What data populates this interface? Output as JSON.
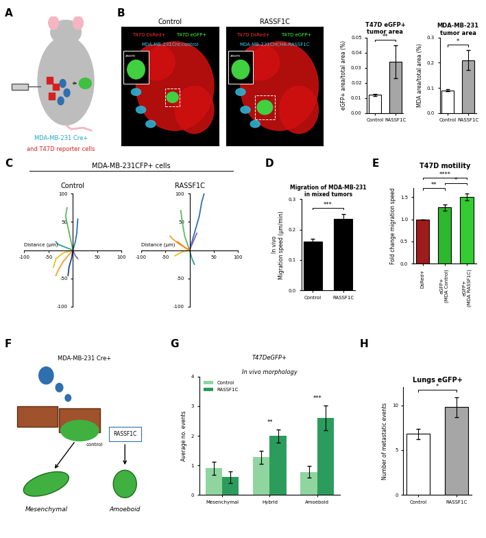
{
  "panel_labels": [
    "A",
    "B",
    "C",
    "D",
    "E",
    "F",
    "G",
    "H"
  ],
  "panel_a": {
    "texts": [
      "MDA-MB-231 Cre+",
      "and T47D reporter cells"
    ]
  },
  "panel_b_images": [
    {
      "title": "Control",
      "overlay": [
        "T47D DsRed+",
        "T47D eGFP+"
      ],
      "cell_label": "MDA-MB-231Cre;control",
      "inset": "zoom"
    },
    {
      "title": "RASSF1C",
      "overlay": [
        "T47D DsRed+",
        "T47D eGFP+"
      ],
      "cell_label": "MDA-MB-231Cre;HA-RASSF1C",
      "inset": "zoom"
    }
  ],
  "panel_c_header": "MDA-MB-231CFP+ cells",
  "panel_f": {
    "source": "MDA-MB-231 Cre+",
    "branches": [
      "control",
      "RASSF1C"
    ],
    "outcomes": [
      "Mesenchymal",
      "Amoeboid"
    ]
  },
  "chart_data": [
    {
      "type": "bar",
      "title": "T47D eGFP+\ntumor area",
      "ylabel": "eGFP+ area/total area (%)",
      "categories": [
        "Control",
        "RASSF1C"
      ],
      "values": [
        0.012,
        0.034
      ],
      "errors": [
        0.0008,
        0.011
      ],
      "colors": [
        "#ffffff",
        "#a6a6a6"
      ],
      "ylim": [
        0,
        0.05
      ],
      "yticks": [
        {
          "value": 0,
          "label": "0.00"
        },
        {
          "value": 0.01,
          "label": "0.01"
        },
        {
          "value": 0.02,
          "label": "0.02"
        },
        {
          "value": 0.03,
          "label": "0.03"
        },
        {
          "value": 0.04,
          "label": "0.04"
        },
        {
          "value": 0.05,
          "label": "0.05"
        }
      ],
      "significance": [
        {
          "pair": [
            0,
            1
          ],
          "label": "**"
        }
      ]
    },
    {
      "type": "bar",
      "title": "MDA-MB-231\ntumor area",
      "ylabel": "MDA area/total area (%)",
      "categories": [
        "Control",
        "RASSF1C"
      ],
      "values": [
        0.09,
        0.21
      ],
      "errors": [
        0.004,
        0.04
      ],
      "colors": [
        "#ffffff",
        "#a6a6a6"
      ],
      "ylim": [
        0,
        0.3
      ],
      "yticks": [
        {
          "value": 0,
          "label": "0.0"
        },
        0.1,
        0.2,
        0.3
      ],
      "significance": [
        {
          "pair": [
            0,
            1
          ],
          "label": "*"
        }
      ]
    },
    {
      "type": "line",
      "title": "Control",
      "xlabel": "Distance (µm)",
      "xlim": [
        -100,
        100
      ],
      "ylim": [
        -100,
        100
      ],
      "xticks": [
        -100,
        -50,
        50,
        100
      ],
      "yticks": [
        -100,
        -50,
        50,
        100
      ],
      "series": [
        {
          "color": "#5cb85c",
          "x": [
            0,
            -5,
            -10,
            -15,
            -12
          ],
          "y": [
            0,
            20,
            40,
            60,
            75
          ]
        },
        {
          "color": "#2e6fb0",
          "x": [
            0,
            5,
            8,
            10
          ],
          "y": [
            0,
            15,
            30,
            55
          ]
        },
        {
          "color": "#f0a030",
          "x": [
            0,
            -10,
            -20,
            -30,
            -35
          ],
          "y": [
            0,
            -10,
            -20,
            -35,
            -45
          ]
        },
        {
          "color": "#1f3f8f",
          "x": [
            0,
            -3,
            -8,
            -10
          ],
          "y": [
            0,
            -15,
            -30,
            -45
          ]
        },
        {
          "color": "#2a9d8f",
          "x": [
            0,
            -15,
            -30,
            -35
          ],
          "y": [
            0,
            5,
            10,
            15
          ]
        },
        {
          "color": "#e8c020",
          "x": [
            0,
            -20,
            -35,
            -40
          ],
          "y": [
            0,
            -5,
            -15,
            -30
          ]
        },
        {
          "color": "#8a5cc0",
          "x": [
            0,
            5,
            10
          ],
          "y": [
            0,
            -10,
            -15
          ]
        }
      ]
    },
    {
      "type": "line",
      "title": "RASSF1C",
      "xlabel": "Distance (µm)",
      "xlim": [
        -100,
        100
      ],
      "ylim": [
        -100,
        100
      ],
      "xticks": [
        -100,
        -50,
        50,
        100
      ],
      "yticks": [
        -100,
        -50,
        50,
        100
      ],
      "series": [
        {
          "color": "#2e6fb0",
          "x": [
            0,
            10,
            20,
            25,
            30
          ],
          "y": [
            0,
            30,
            60,
            85,
            100
          ]
        },
        {
          "color": "#5cb85c",
          "x": [
            0,
            -10,
            -15,
            -18
          ],
          "y": [
            0,
            25,
            50,
            70
          ]
        },
        {
          "color": "#f0a030",
          "x": [
            0,
            -20,
            -35,
            -40
          ],
          "y": [
            0,
            10,
            20,
            25
          ]
        },
        {
          "color": "#2a9d8f",
          "x": [
            0,
            5,
            10
          ],
          "y": [
            0,
            -15,
            -25
          ]
        },
        {
          "color": "#e8c020",
          "x": [
            0,
            -15,
            -30
          ],
          "y": [
            0,
            -3,
            -10
          ]
        },
        {
          "color": "#8a5cc0",
          "x": [
            0,
            10,
            15
          ],
          "y": [
            0,
            20,
            30
          ]
        },
        {
          "color": "#ff7f0e",
          "x": [
            0,
            -10,
            -25
          ],
          "y": [
            0,
            5,
            15
          ]
        }
      ]
    },
    {
      "type": "bar",
      "title": "Migration of MDA-MB-231\nin mixed tumors",
      "ylabel": "In vivo\nMigration speed (µm/min)",
      "categories": [
        "Control",
        "RASSF1C"
      ],
      "values": [
        0.16,
        0.235
      ],
      "errors": [
        0.01,
        0.016
      ],
      "colors": [
        "#000000",
        "#000000"
      ],
      "ylim": [
        0,
        0.3
      ],
      "yticks": [
        {
          "value": 0,
          "label": "0.0"
        },
        0.1,
        0.2,
        0.3
      ],
      "significance": [
        {
          "pair": [
            0,
            1
          ],
          "label": "***"
        }
      ]
    },
    {
      "type": "bar",
      "title": "T47D motility",
      "ylabel": "Fold change migration speed",
      "categories": [
        "DsRed+",
        "eGFP+\n(MDA Control)",
        "eGFP+\n(MDA RASSF1C)"
      ],
      "values": [
        1.0,
        1.27,
        1.5
      ],
      "errors": [
        0,
        0.07,
        0.08
      ],
      "colors": [
        "#a01c1c",
        "#2db82d",
        "#33cc33"
      ],
      "ylim": [
        0,
        1.7
      ],
      "yticks": [
        {
          "value": 0,
          "label": "0.0"
        },
        0.5,
        {
          "value": 1,
          "label": "1.0"
        },
        1.5
      ],
      "significance": [
        {
          "pair": [
            0,
            1
          ],
          "label": "**"
        },
        {
          "pair": [
            1,
            2
          ],
          "label": "*"
        },
        {
          "pair": [
            0,
            2
          ],
          "label": "****"
        }
      ]
    },
    {
      "type": "grouped_bar",
      "title": "T47DeGFP+",
      "subtitle": "In vivo morphology",
      "ylabel": "Average no. events",
      "categories": [
        "Mesenchymal",
        "Hybrid",
        "Amoeboid"
      ],
      "series": [
        {
          "name": "Control",
          "color": "#90d5a0",
          "values": [
            0.9,
            1.28,
            0.78
          ],
          "errors": [
            0.22,
            0.22,
            0.2
          ]
        },
        {
          "name": "RASSF1C",
          "color": "#2c9c5c",
          "values": [
            0.6,
            2.0,
            2.6
          ],
          "errors": [
            0.2,
            0.22,
            0.42
          ]
        }
      ],
      "ylim": [
        0,
        4
      ],
      "yticks": [
        0,
        1,
        2,
        3,
        4
      ],
      "legend": "upper left",
      "significance": [
        {
          "category": 1,
          "label": "**"
        },
        {
          "category": 2,
          "label": "***"
        }
      ]
    },
    {
      "type": "bar",
      "title": "Lungs eGFP+",
      "ylabel": "Number of metastatic events",
      "categories": [
        "Control",
        "RASSF1C"
      ],
      "values": [
        6.8,
        9.8
      ],
      "errors": [
        0.6,
        1.1
      ],
      "colors": [
        "#ffffff",
        "#a6a6a6"
      ],
      "ylim": [
        0,
        12
      ],
      "yticks": [
        0,
        5,
        10
      ],
      "significance": [
        {
          "pair": [
            0,
            1
          ],
          "label": "*"
        }
      ]
    }
  ]
}
